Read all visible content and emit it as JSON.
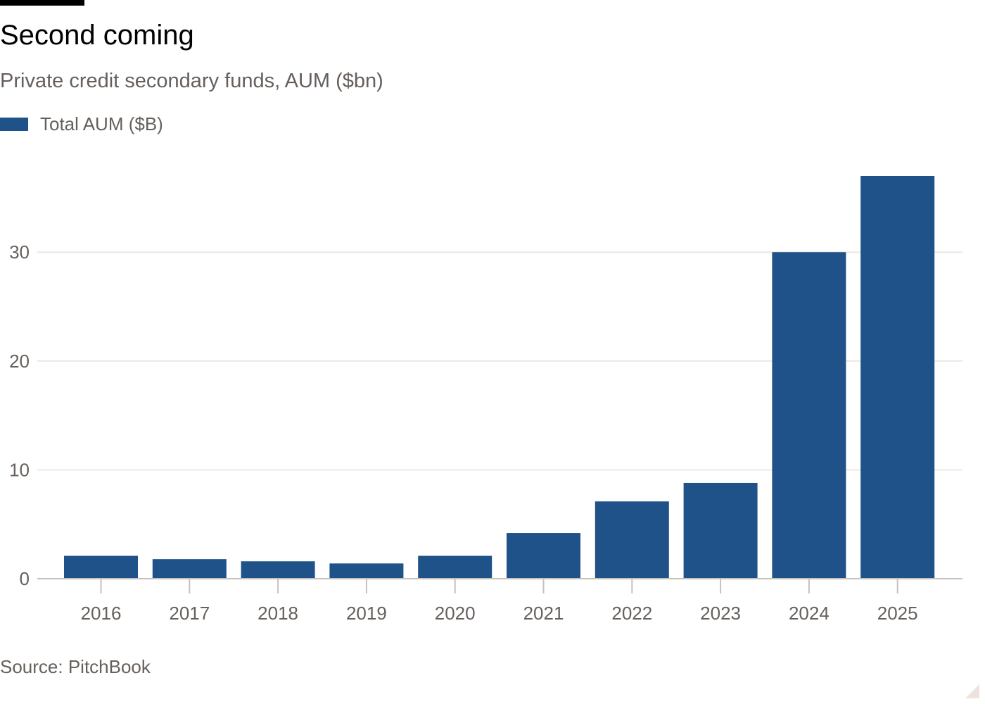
{
  "title": "Second coming",
  "subtitle": "Private credit secondary funds, AUM ($bn)",
  "source": "Source: PitchBook",
  "colors": {
    "bar": "#1f5289",
    "grid": "#efe6e0",
    "axis": "#c7c1bd",
    "tick_text": "#66605c"
  },
  "chart_data": {
    "type": "bar",
    "categories": [
      "2016",
      "2017",
      "2018",
      "2019",
      "2020",
      "2021",
      "2022",
      "2023",
      "2024",
      "2025"
    ],
    "series": [
      {
        "name": "Total AUM ($B)",
        "values": [
          2.1,
          1.8,
          1.6,
          1.4,
          2.1,
          4.2,
          7.1,
          8.8,
          30.0,
          37.0
        ]
      }
    ],
    "ylim": [
      0,
      37
    ],
    "yticks": [
      "0",
      "10",
      "20",
      "30"
    ],
    "xlabel": "",
    "ylabel": "",
    "grid": true,
    "legend": "top-left"
  }
}
